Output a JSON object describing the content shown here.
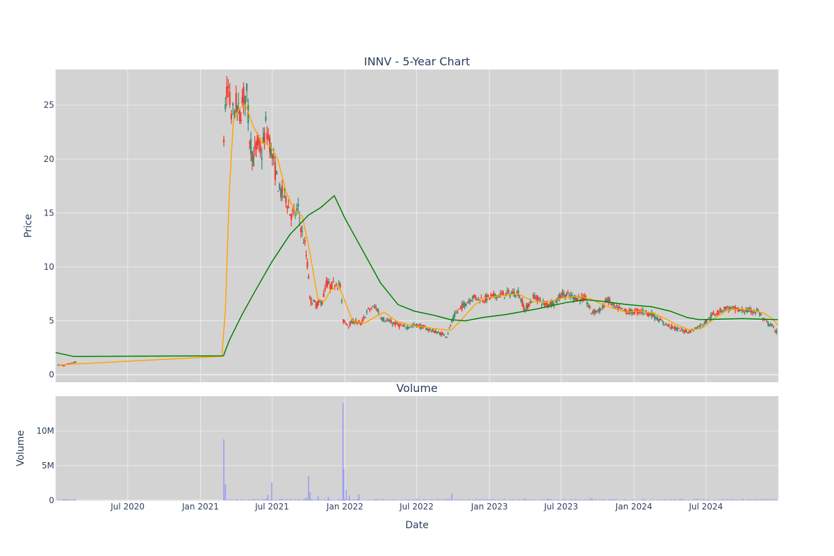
{
  "chart_data": [
    {
      "type": "candlestick",
      "title": "INNV - 5-Year Chart",
      "xlabel": "",
      "ylabel": "Price",
      "ylim": [
        -0.7,
        28.3
      ],
      "yticks": [
        0,
        5,
        10,
        15,
        20,
        25
      ],
      "grid": true,
      "colors": {
        "increasing": "#3d8b6d",
        "decreasing": "#ef3b2c",
        "ma_short": "#ffa500",
        "ma_long": "#008000",
        "plot_bg": "#d3d3d3",
        "grid": "#ebebeb"
      },
      "anchors_close": [
        [
          "2020-01-08",
          0.9
        ],
        [
          "2020-01-20",
          0.85
        ],
        [
          "2020-02-05",
          1.0
        ],
        [
          "2020-02-18",
          1.15
        ],
        [
          "2020-02-25",
          1.1
        ],
        [
          "2021-03-01",
          22.0
        ],
        [
          "2021-03-05",
          25.0
        ],
        [
          "2021-03-12",
          26.5
        ],
        [
          "2021-03-20",
          24.0
        ],
        [
          "2021-04-01",
          25.0
        ],
        [
          "2021-04-10",
          24.0
        ],
        [
          "2021-04-20",
          25.8
        ],
        [
          "2021-04-28",
          26.0
        ],
        [
          "2021-05-05",
          22.0
        ],
        [
          "2021-05-15",
          20.0
        ],
        [
          "2021-05-25",
          21.5
        ],
        [
          "2021-06-05",
          20.5
        ],
        [
          "2021-06-15",
          23.0
        ],
        [
          "2021-06-25",
          21.5
        ],
        [
          "2021-07-05",
          19.5
        ],
        [
          "2021-07-20",
          17.0
        ],
        [
          "2021-08-05",
          16.5
        ],
        [
          "2021-08-15",
          15.0
        ],
        [
          "2021-08-25",
          14.8
        ],
        [
          "2021-09-05",
          15.3
        ],
        [
          "2021-09-15",
          13.0
        ],
        [
          "2021-09-22",
          12.0
        ],
        [
          "2021-10-01",
          9.2
        ],
        [
          "2021-10-04",
          7.0
        ],
        [
          "2021-10-20",
          6.5
        ],
        [
          "2021-11-05",
          6.8
        ],
        [
          "2021-11-15",
          8.5
        ],
        [
          "2021-11-25",
          8.2
        ],
        [
          "2021-12-10",
          8.5
        ],
        [
          "2021-12-20",
          8.2
        ],
        [
          "2021-12-28",
          5.0
        ],
        [
          "2022-01-10",
          4.6
        ],
        [
          "2022-01-25",
          5.0
        ],
        [
          "2022-02-10",
          4.7
        ],
        [
          "2022-03-01",
          6.0
        ],
        [
          "2022-03-20",
          6.3
        ],
        [
          "2022-04-05",
          5.2
        ],
        [
          "2022-05-01",
          4.8
        ],
        [
          "2022-06-01",
          4.4
        ],
        [
          "2022-07-01",
          4.6
        ],
        [
          "2022-08-01",
          4.2
        ],
        [
          "2022-09-15",
          3.6
        ],
        [
          "2022-10-05",
          5.5
        ],
        [
          "2022-10-20",
          6.2
        ],
        [
          "2022-11-20",
          7.2
        ],
        [
          "2022-12-15",
          7.0
        ],
        [
          "2023-01-15",
          7.3
        ],
        [
          "2023-02-15",
          7.5
        ],
        [
          "2023-03-15",
          7.6
        ],
        [
          "2023-04-01",
          6.0
        ],
        [
          "2023-04-25",
          7.3
        ],
        [
          "2023-05-20",
          6.5
        ],
        [
          "2023-06-20",
          6.8
        ],
        [
          "2023-07-01",
          7.5
        ],
        [
          "2023-08-01",
          7.2
        ],
        [
          "2023-09-01",
          7.0
        ],
        [
          "2023-09-15",
          5.8
        ],
        [
          "2023-10-10",
          6.0
        ],
        [
          "2023-10-25",
          7.0
        ],
        [
          "2023-11-15",
          6.2
        ],
        [
          "2023-12-20",
          5.8
        ],
        [
          "2024-01-20",
          5.9
        ],
        [
          "2024-02-15",
          5.6
        ],
        [
          "2024-03-15",
          4.8
        ],
        [
          "2024-04-20",
          4.2
        ],
        [
          "2024-05-20",
          4.0
        ],
        [
          "2024-06-20",
          4.6
        ],
        [
          "2024-07-20",
          5.6
        ],
        [
          "2024-08-20",
          6.2
        ],
        [
          "2024-09-20",
          6.0
        ],
        [
          "2024-10-20",
          5.9
        ],
        [
          "2024-11-10",
          5.9
        ],
        [
          "2024-11-25",
          5.0
        ],
        [
          "2024-12-15",
          4.5
        ],
        [
          "2024-12-30",
          3.8
        ]
      ],
      "ma_short": [
        [
          "2020-01-08",
          0.9
        ],
        [
          "2020-02-25",
          1.0
        ],
        [
          "2021-02-24",
          1.7
        ],
        [
          "2021-03-05",
          6.0
        ],
        [
          "2021-03-15",
          17.0
        ],
        [
          "2021-03-25",
          23.5
        ],
        [
          "2021-04-10",
          24.7
        ],
        [
          "2021-04-25",
          25.0
        ],
        [
          "2021-05-15",
          23.0
        ],
        [
          "2021-06-05",
          21.5
        ],
        [
          "2021-06-25",
          21.3
        ],
        [
          "2021-07-15",
          20.0
        ],
        [
          "2021-08-05",
          17.0
        ],
        [
          "2021-08-25",
          15.3
        ],
        [
          "2021-09-15",
          14.7
        ],
        [
          "2021-10-01",
          12.0
        ],
        [
          "2021-10-25",
          7.0
        ],
        [
          "2021-11-10",
          6.8
        ],
        [
          "2021-11-25",
          7.8
        ],
        [
          "2021-12-15",
          8.3
        ],
        [
          "2021-12-30",
          7.0
        ],
        [
          "2022-01-20",
          5.0
        ],
        [
          "2022-02-20",
          4.8
        ],
        [
          "2022-03-20",
          5.4
        ],
        [
          "2022-04-10",
          5.8
        ],
        [
          "2022-05-10",
          5.0
        ],
        [
          "2022-06-15",
          4.6
        ],
        [
          "2022-08-10",
          4.3
        ],
        [
          "2022-09-25",
          4.1
        ],
        [
          "2022-10-20",
          5.0
        ],
        [
          "2022-11-25",
          6.5
        ],
        [
          "2022-12-20",
          7.1
        ],
        [
          "2023-02-15",
          7.4
        ],
        [
          "2023-03-15",
          7.5
        ],
        [
          "2023-04-20",
          6.8
        ],
        [
          "2023-05-20",
          6.7
        ],
        [
          "2023-07-05",
          7.1
        ],
        [
          "2023-08-15",
          7.3
        ],
        [
          "2023-09-15",
          7.0
        ],
        [
          "2023-10-20",
          6.4
        ],
        [
          "2023-12-10",
          5.8
        ],
        [
          "2024-01-20",
          5.9
        ],
        [
          "2024-02-20",
          5.7
        ],
        [
          "2024-03-20",
          5.2
        ],
        [
          "2024-04-20",
          4.6
        ],
        [
          "2024-05-25",
          4.1
        ],
        [
          "2024-06-25",
          4.4
        ],
        [
          "2024-07-25",
          5.3
        ],
        [
          "2024-08-25",
          6.0
        ],
        [
          "2024-09-25",
          6.1
        ],
        [
          "2024-10-25",
          6.0
        ],
        [
          "2024-11-25",
          5.7
        ],
        [
          "2024-12-15",
          5.2
        ],
        [
          "2024-12-30",
          4.6
        ]
      ],
      "ma_long": [
        [
          "2020-01-01",
          2.05
        ],
        [
          "2020-02-15",
          1.7
        ],
        [
          "2021-02-28",
          1.75
        ],
        [
          "2021-03-15",
          3.2
        ],
        [
          "2021-04-15",
          5.5
        ],
        [
          "2021-05-15",
          7.5
        ],
        [
          "2021-07-01",
          10.5
        ],
        [
          "2021-08-15",
          13.0
        ],
        [
          "2021-10-01",
          14.8
        ],
        [
          "2021-11-01",
          15.5
        ],
        [
          "2021-12-05",
          16.6
        ],
        [
          "2022-01-01",
          14.5
        ],
        [
          "2022-02-15",
          11.5
        ],
        [
          "2022-04-01",
          8.5
        ],
        [
          "2022-05-15",
          6.5
        ],
        [
          "2022-06-25",
          5.9
        ],
        [
          "2022-08-15",
          5.5
        ],
        [
          "2022-09-25",
          5.1
        ],
        [
          "2022-11-01",
          5.0
        ],
        [
          "2022-12-15",
          5.3
        ],
        [
          "2023-02-15",
          5.6
        ],
        [
          "2023-05-01",
          6.1
        ],
        [
          "2023-07-15",
          6.7
        ],
        [
          "2023-09-01",
          6.95
        ],
        [
          "2023-10-15",
          6.8
        ],
        [
          "2023-12-15",
          6.5
        ],
        [
          "2024-02-15",
          6.3
        ],
        [
          "2024-04-01",
          5.9
        ],
        [
          "2024-05-15",
          5.3
        ],
        [
          "2024-06-15",
          5.1
        ],
        [
          "2024-08-01",
          5.15
        ],
        [
          "2024-10-01",
          5.2
        ],
        [
          "2024-12-30",
          5.1
        ]
      ]
    },
    {
      "type": "bar",
      "title": "Volume",
      "xlabel": "Date",
      "ylabel": "Volume",
      "ylim": [
        0,
        15000000
      ],
      "yticks": [
        0,
        5000000,
        10000000
      ],
      "ytick_labels": [
        "0",
        "5M",
        "10M"
      ],
      "xticks": [
        "2020-07-01",
        "2021-01-01",
        "2021-07-01",
        "2022-01-01",
        "2022-07-01",
        "2023-01-01",
        "2023-07-01",
        "2024-01-01",
        "2024-07-01"
      ],
      "xtick_labels": [
        "Jul 2020",
        "Jan 2021",
        "Jul 2021",
        "Jan 2022",
        "Jul 2022",
        "Jan 2023",
        "Jul 2023",
        "Jan 2024",
        "Jul 2024"
      ],
      "color": "#9b9bf2",
      "spikes": [
        [
          "2021-03-01",
          8800000
        ],
        [
          "2021-03-05",
          2300000
        ],
        [
          "2021-06-20",
          800000
        ],
        [
          "2021-06-30",
          2600000
        ],
        [
          "2021-09-25",
          400000
        ],
        [
          "2021-10-01",
          3500000
        ],
        [
          "2021-10-05",
          1200000
        ],
        [
          "2021-10-25",
          600000
        ],
        [
          "2021-11-20",
          500000
        ],
        [
          "2021-12-27",
          14000000
        ],
        [
          "2021-12-29",
          4500000
        ],
        [
          "2022-01-04",
          1500000
        ],
        [
          "2022-01-12",
          700000
        ],
        [
          "2022-02-05",
          900000
        ],
        [
          "2022-09-28",
          1000000
        ],
        [
          "2023-04-01",
          300000
        ],
        [
          "2023-09-15",
          300000
        ]
      ]
    }
  ]
}
